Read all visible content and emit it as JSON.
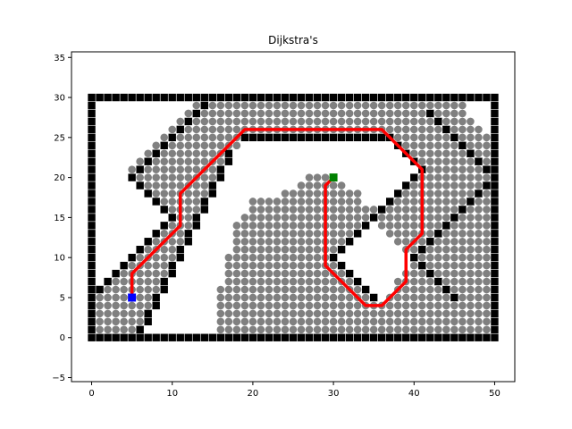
{
  "chart_data": {
    "type": "scatter",
    "title": "Dijkstra's",
    "xlabel": "",
    "ylabel": "",
    "xlim": [
      -2.5,
      52.5
    ],
    "ylim": [
      -5.5,
      35.7
    ],
    "xticks": [
      0,
      10,
      20,
      30,
      40,
      50
    ],
    "yticks": [
      -5,
      0,
      5,
      10,
      15,
      20,
      25,
      30,
      35
    ],
    "grid": false,
    "legend": "none",
    "colors": {
      "obstacle": "#000000",
      "visited": "#808080",
      "path": "#ff0000",
      "start": "#0000ff",
      "goal": "#008000"
    },
    "grid_resolution": 1,
    "boundary": {
      "xmin": 0,
      "xmax": 50,
      "ymin": 0,
      "ymax": 30
    },
    "inner_obstacles": [
      {
        "name": "upper-left-diagonal",
        "from": [
          5,
          20
        ],
        "to": [
          14,
          29
        ],
        "direction": "up-right"
      },
      {
        "name": "left-lower-diagonal",
        "from": [
          0,
          5
        ],
        "to": [
          10,
          15
        ],
        "direction": "up-right"
      },
      {
        "name": "left-upper-inner-diagonal",
        "from": [
          10,
          15
        ],
        "to": [
          6,
          19
        ],
        "direction": "up-left"
      },
      {
        "name": "middle-diagonal",
        "from": [
          6,
          1
        ],
        "to": [
          17,
          23
        ],
        "direction": "up-right-steep"
      },
      {
        "name": "top-bar",
        "from": [
          19,
          25
        ],
        "to": [
          37,
          25
        ],
        "direction": "horizontal"
      },
      {
        "name": "top-bar-right-diagonal",
        "from": [
          37,
          25
        ],
        "to": [
          41,
          21
        ],
        "direction": "down-right"
      },
      {
        "name": "center-diagonal",
        "from": [
          30,
          10
        ],
        "to": [
          41,
          21
        ],
        "direction": "up-right"
      },
      {
        "name": "center-lower-diagonal",
        "from": [
          30,
          10
        ],
        "to": [
          35,
          5
        ],
        "direction": "down-right"
      },
      {
        "name": "right-upper-diagonal",
        "from": [
          42,
          28
        ],
        "to": [
          50,
          20
        ],
        "direction": "down-right"
      },
      {
        "name": "right-middle-diagonal",
        "from": [
          40,
          10
        ],
        "to": [
          50,
          20
        ],
        "direction": "up-right"
      },
      {
        "name": "right-lower-diagonal",
        "from": [
          40,
          10
        ],
        "to": [
          45,
          5
        ],
        "direction": "down-right"
      }
    ],
    "visited_regions": [
      {
        "name": "left-band",
        "polygon": [
          [
            1,
            1
          ],
          [
            6,
            1
          ],
          [
            17,
            22
          ],
          [
            14,
            29
          ],
          [
            13,
            29
          ],
          [
            5,
            21
          ],
          [
            5,
            20
          ],
          [
            10,
            15
          ],
          [
            1,
            6
          ]
        ]
      },
      {
        "name": "top-band",
        "polygon": [
          [
            14,
            29
          ],
          [
            46,
            29
          ],
          [
            50,
            24
          ],
          [
            50,
            21
          ],
          [
            41,
            21
          ],
          [
            37,
            25
          ],
          [
            19,
            25
          ],
          [
            17,
            23
          ]
        ]
      },
      {
        "name": "center-mound",
        "polygon": [
          [
            16,
            1
          ],
          [
            16,
            6
          ],
          [
            17,
            10
          ],
          [
            18,
            14
          ],
          [
            20,
            17
          ],
          [
            24,
            18
          ],
          [
            27,
            20
          ],
          [
            30,
            20
          ],
          [
            33,
            18
          ],
          [
            34,
            16
          ],
          [
            36,
            16
          ],
          [
            30,
            10
          ],
          [
            35,
            5
          ],
          [
            33,
            1
          ]
        ]
      },
      {
        "name": "right-band",
        "polygon": [
          [
            33,
            1
          ],
          [
            35,
            5
          ],
          [
            36,
            4
          ],
          [
            40,
            10
          ],
          [
            41,
            11
          ],
          [
            45,
            5
          ],
          [
            50,
            1
          ]
        ]
      },
      {
        "name": "right-triangle",
        "polygon": [
          [
            36,
            16
          ],
          [
            41,
            21
          ],
          [
            50,
            21
          ],
          [
            50,
            20
          ],
          [
            40,
            10
          ],
          [
            36,
            14
          ]
        ]
      },
      {
        "name": "right-far-band",
        "polygon": [
          [
            40,
            10
          ],
          [
            50,
            20
          ],
          [
            50,
            1
          ],
          [
            45,
            5
          ]
        ]
      }
    ],
    "path": {
      "x": [
        5,
        5,
        11,
        11,
        19,
        36,
        41,
        41,
        39,
        39,
        36,
        34,
        29,
        29,
        30
      ],
      "y": [
        5,
        8,
        14,
        18,
        26,
        26,
        21,
        13,
        11,
        7,
        4,
        4,
        9,
        19,
        20
      ]
    },
    "start": {
      "x": 5,
      "y": 5
    },
    "goal": {
      "x": 30,
      "y": 20
    }
  }
}
